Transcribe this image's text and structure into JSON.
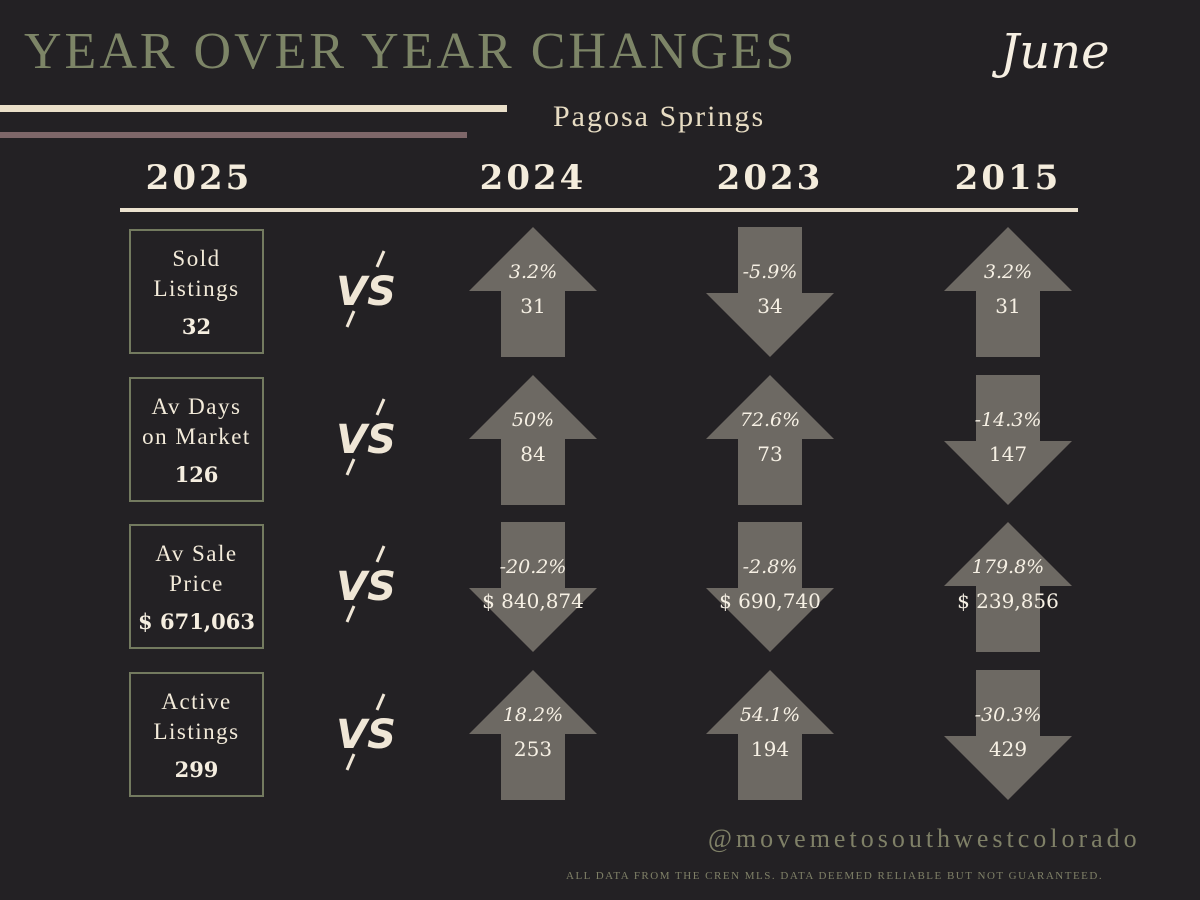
{
  "header": {
    "title": "YEAR OVER YEAR CHANGES",
    "month": "June",
    "location": "Pagosa Springs"
  },
  "years": {
    "current": "2025",
    "comparisons": [
      "2024",
      "2023",
      "2015"
    ]
  },
  "vs_label": "VS",
  "colors": {
    "background": "#232124",
    "title": "#7d8567",
    "arrow": "#6d6963",
    "accent_bar": "#eadfc9",
    "secondary_bar": "#7e6769"
  },
  "rows": [
    {
      "label": "Sold\nListings",
      "value": "32",
      "comparisons": [
        {
          "pct": "3.2%",
          "value": "31",
          "direction": "up"
        },
        {
          "pct": "-5.9%",
          "value": "34",
          "direction": "down"
        },
        {
          "pct": "3.2%",
          "value": "31",
          "direction": "up"
        }
      ]
    },
    {
      "label": "Av Days\non Market",
      "value": "126",
      "comparisons": [
        {
          "pct": "50%",
          "value": "84",
          "direction": "up"
        },
        {
          "pct": "72.6%",
          "value": "73",
          "direction": "up"
        },
        {
          "pct": "-14.3%",
          "value": "147",
          "direction": "down"
        }
      ]
    },
    {
      "label": "Av Sale\nPrice",
      "value": "$ 671,063",
      "comparisons": [
        {
          "pct": "-20.2%",
          "value": "$ 840,874",
          "direction": "down"
        },
        {
          "pct": "-2.8%",
          "value": "$ 690,740",
          "direction": "down"
        },
        {
          "pct": "179.8%",
          "value": "$ 239,856",
          "direction": "up"
        }
      ]
    },
    {
      "label": "Active\nListings",
      "value": "299",
      "comparisons": [
        {
          "pct": "18.2%",
          "value": "253",
          "direction": "up"
        },
        {
          "pct": "54.1%",
          "value": "194",
          "direction": "up"
        },
        {
          "pct": "-30.3%",
          "value": "429",
          "direction": "down"
        }
      ]
    }
  ],
  "footer": {
    "handle": "@movemetosouthwestcolorado",
    "disclaimer": "ALL DATA FROM THE CREN MLS. DATA DEEMED RELIABLE BUT NOT GUARANTEED."
  }
}
